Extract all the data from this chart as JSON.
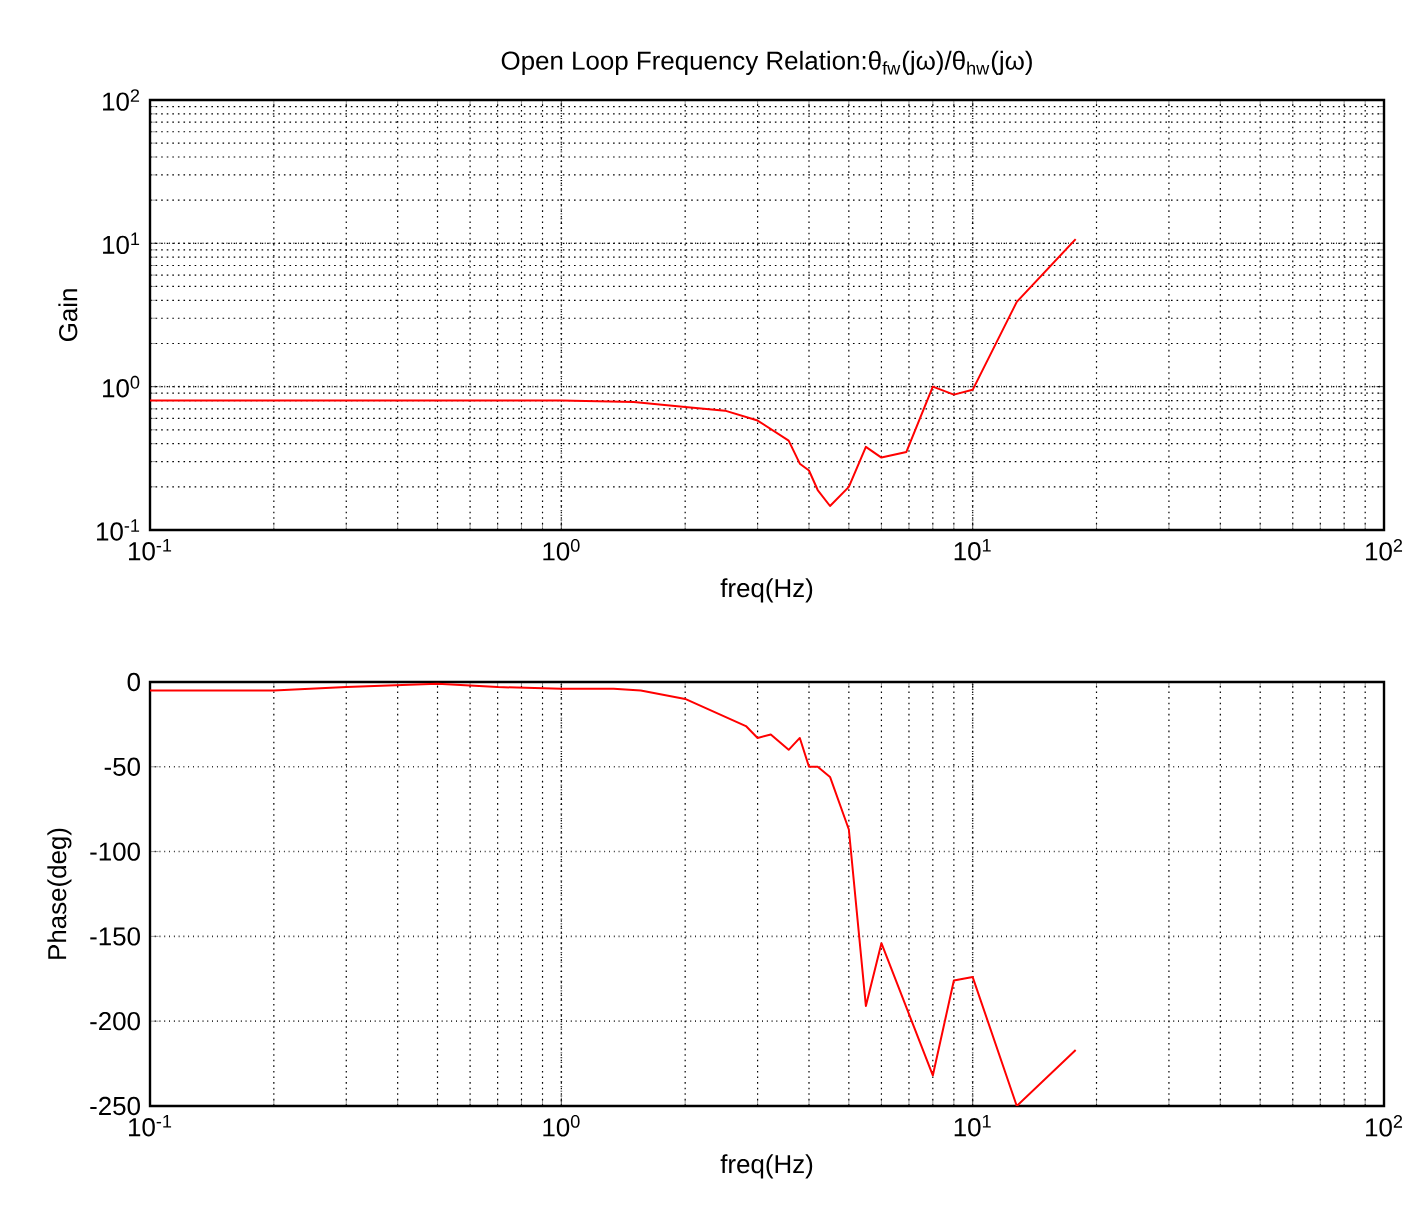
{
  "chart_data": [
    {
      "type": "line",
      "title": "Open Loop Frequency Relation:θ$_{fw}$(jω)/θ$_{hw}$(jω)",
      "xlabel": "freq(Hz)",
      "ylabel": "Gain",
      "log": "xy",
      "grid": true,
      "marker": "none",
      "line_style": "solid",
      "xlim": [
        0.1,
        100
      ],
      "ylim": [
        0.1,
        100
      ],
      "xticks": [
        {
          "value": 0.1,
          "label": "10$^{-1}$"
        },
        {
          "value": 1,
          "label": "10$^{0}$"
        },
        {
          "value": 10,
          "label": "10$^{1}$"
        },
        {
          "value": 100,
          "label": "10$^{2}$"
        }
      ],
      "yticks": [
        {
          "value": 0.1,
          "label": "10$^{-1}$"
        },
        {
          "value": 1,
          "label": "10$^{0}$"
        },
        {
          "value": 10,
          "label": "10$^{1}$"
        },
        {
          "value": 100,
          "label": "10$^{2}$"
        }
      ],
      "series": [
        {
          "color": "#ff0000",
          "x": [
            0.1,
            0.2,
            0.5,
            1,
            1.5,
            2,
            2.5,
            3,
            3.57,
            3.8,
            4,
            4.2,
            4.5,
            5,
            5.5,
            6,
            6.9,
            8,
            9,
            10,
            12.8,
            17.8
          ],
          "values": [
            0.8,
            0.8,
            0.8,
            0.8,
            0.78,
            0.72,
            0.68,
            0.58,
            0.42,
            0.29,
            0.26,
            0.19,
            0.147,
            0.2,
            0.38,
            0.32,
            0.35,
            1.0,
            0.88,
            0.95,
            3.9,
            10.7
          ]
        }
      ]
    },
    {
      "type": "line",
      "xlabel": "freq(Hz)",
      "ylabel": "Phase(deg)",
      "log": "x",
      "grid": true,
      "marker": "none",
      "line_style": "solid",
      "xlim": [
        0.1,
        100
      ],
      "ylim": [
        -250,
        0
      ],
      "xticks": [
        {
          "value": 0.1,
          "label": "10$^{-1}$"
        },
        {
          "value": 1,
          "label": "10$^{0}$"
        },
        {
          "value": 10,
          "label": "10$^{1}$"
        },
        {
          "value": 100,
          "label": "10$^{2}$"
        }
      ],
      "yticks": [
        -250,
        -200,
        -150,
        -100,
        -50,
        0
      ],
      "series": [
        {
          "color": "#ff0000",
          "x": [
            0.1,
            0.2,
            0.3,
            0.5,
            0.7,
            1,
            1.34,
            1.56,
            2,
            2.81,
            3,
            3.23,
            3.57,
            3.8,
            4,
            4.2,
            4.5,
            5,
            5.5,
            6,
            8,
            9,
            10,
            12.8,
            17.8
          ],
          "values": [
            -5,
            -5,
            -3,
            -1,
            -3,
            -4,
            -4,
            -5,
            -10,
            -26,
            -33,
            -31,
            -40,
            -33,
            -50,
            -50,
            -56,
            -87,
            -191,
            -154,
            -232,
            -176,
            -174,
            -250,
            -217
          ]
        }
      ]
    }
  ]
}
